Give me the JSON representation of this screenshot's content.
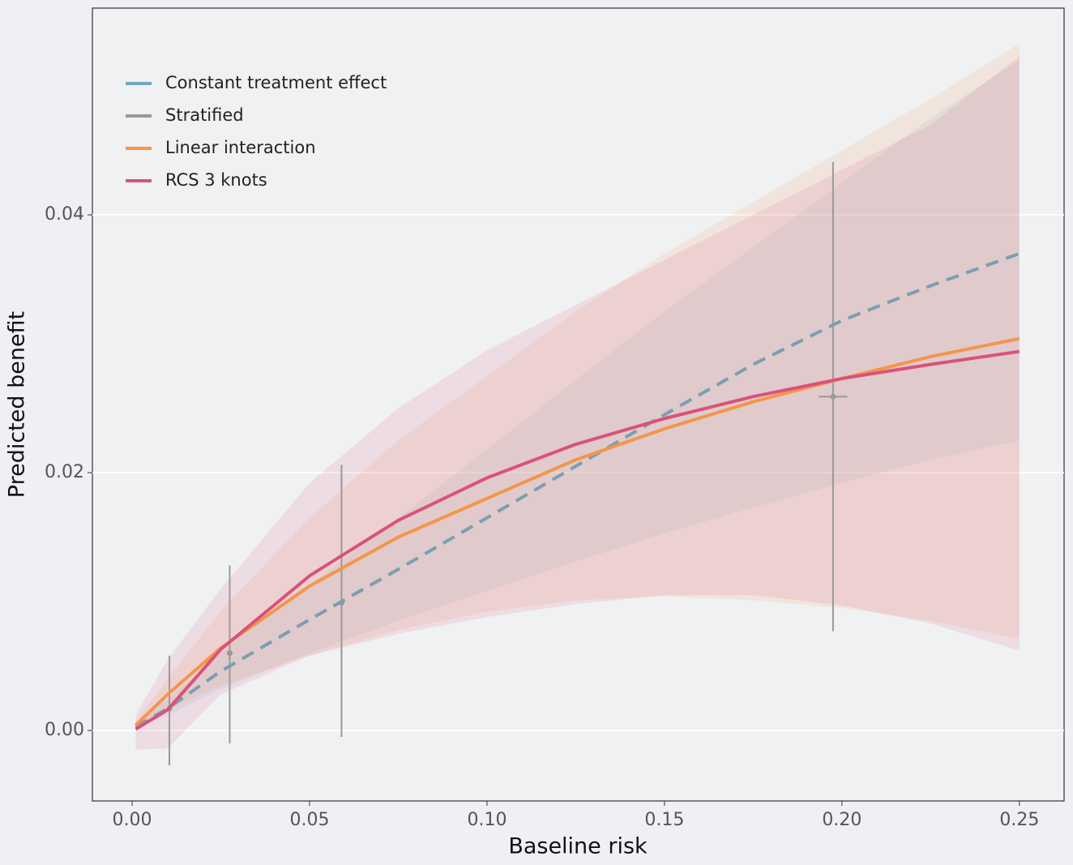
{
  "chart_data": {
    "type": "line",
    "xlabel": "Baseline risk",
    "ylabel": "Predicted benefit",
    "xlim": [
      -0.0112,
      0.2626
    ],
    "ylim": [
      -0.00547,
      0.05604
    ],
    "xticks": [
      {
        "value": 0,
        "label": "0.00"
      },
      {
        "value": 0.05,
        "label": "0.05"
      },
      {
        "value": 0.1,
        "label": "0.10"
      },
      {
        "value": 0.15,
        "label": "0.15"
      },
      {
        "value": 0.2,
        "label": "0.20"
      },
      {
        "value": 0.25,
        "label": "0.25"
      }
    ],
    "yticks": [
      {
        "value": 0,
        "label": "0.00"
      },
      {
        "value": 0.02,
        "label": "0.02"
      },
      {
        "value": 0.04,
        "label": "0.04"
      }
    ],
    "grid": true,
    "legend": "top-left",
    "series": [
      {
        "name": "Constant treatment effect",
        "color": "#6fa8c1",
        "line_color": "#7a9fb0",
        "dashed": true,
        "x": [
          0.001,
          0.01,
          0.025,
          0.05,
          0.075,
          0.1,
          0.125,
          0.15,
          0.175,
          0.2,
          0.225,
          0.25
        ],
        "values": [
          0.0003,
          0.0017,
          0.0046,
          0.0086,
          0.0125,
          0.0165,
          0.0205,
          0.0245,
          0.0284,
          0.0318,
          0.0345,
          0.037
        ],
        "lower": [
          0.0002,
          0.0012,
          0.0032,
          0.006,
          0.0085,
          0.0108,
          0.0131,
          0.0153,
          0.0173,
          0.0192,
          0.021,
          0.0225
        ],
        "upper": [
          0.0004,
          0.0024,
          0.006,
          0.0113,
          0.0165,
          0.0218,
          0.0272,
          0.0325,
          0.0375,
          0.0425,
          0.0475,
          0.052
        ]
      },
      {
        "name": "Stratified",
        "color": "#999999",
        "points": true,
        "x": [
          0.0105,
          0.0275,
          0.059,
          0.1975
        ],
        "values": [
          0.0017,
          0.006,
          0.0099,
          0.0259
        ],
        "lower": [
          -0.0027,
          -0.001,
          -0.0005,
          0.0077
        ],
        "upper": [
          0.0058,
          0.0128,
          0.0206,
          0.0441
        ],
        "xlower": [
          0.0105,
          0.0275,
          0.059,
          0.1935
        ],
        "xupper": [
          0.0105,
          0.0275,
          0.059,
          0.2015
        ]
      },
      {
        "name": "Linear interaction",
        "color": "#f4954a",
        "x": [
          0.001,
          0.01,
          0.025,
          0.05,
          0.075,
          0.1,
          0.125,
          0.15,
          0.175,
          0.2,
          0.225,
          0.25
        ],
        "values": [
          0.0004,
          0.0028,
          0.0064,
          0.0112,
          0.015,
          0.018,
          0.021,
          0.0234,
          0.0255,
          0.0273,
          0.029,
          0.0304
        ],
        "lower": [
          0.0001,
          0.0016,
          0.0035,
          0.0058,
          0.0078,
          0.0092,
          0.0101,
          0.0104,
          0.0101,
          0.0095,
          0.0085,
          0.0071
        ],
        "upper": [
          0.0007,
          0.004,
          0.0093,
          0.0165,
          0.0225,
          0.0275,
          0.0325,
          0.037,
          0.041,
          0.045,
          0.049,
          0.0533
        ]
      },
      {
        "name": "RCS 3 knots",
        "color": "#d9527a",
        "x": [
          0.001,
          0.01,
          0.025,
          0.05,
          0.075,
          0.1,
          0.125,
          0.15,
          0.175,
          0.2,
          0.225,
          0.25
        ],
        "values": [
          0.0001,
          0.0016,
          0.0063,
          0.012,
          0.0163,
          0.0196,
          0.0222,
          0.0242,
          0.0259,
          0.0273,
          0.0284,
          0.0294
        ],
        "lower": [
          -0.0015,
          -0.0014,
          0.0028,
          0.0058,
          0.0075,
          0.0088,
          0.0098,
          0.0105,
          0.0105,
          0.0097,
          0.0083,
          0.0062
        ],
        "upper": [
          0.0012,
          0.0055,
          0.011,
          0.0192,
          0.025,
          0.0295,
          0.033,
          0.0365,
          0.04,
          0.0435,
          0.047,
          0.0523
        ]
      }
    ]
  }
}
